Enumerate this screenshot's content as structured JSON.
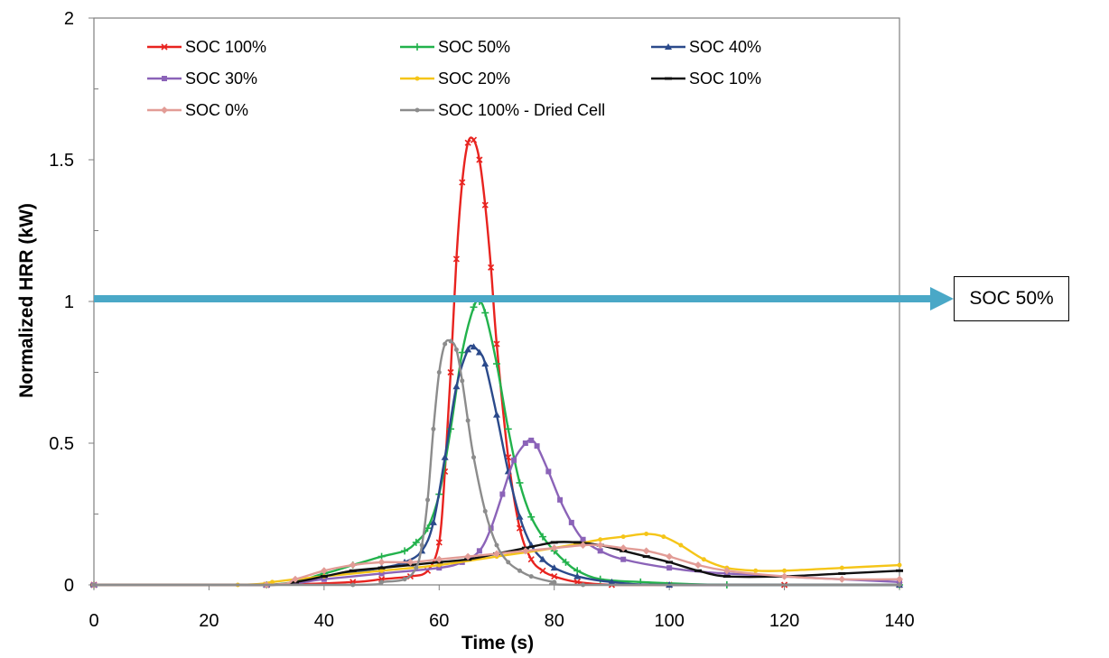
{
  "chart_data": {
    "type": "line",
    "title": "",
    "xlabel": "Time (s)",
    "ylabel": "Normalized HRR (kW)",
    "xlim": [
      0,
      140
    ],
    "ylim": [
      0,
      2
    ],
    "xticks": [
      "0",
      "20",
      "40",
      "60",
      "80",
      "100",
      "120",
      "140"
    ],
    "yticks": [
      "0",
      "0.5",
      "1",
      "1.5",
      "2"
    ],
    "legend_position": "top-left inside plot",
    "grid": false,
    "series": [
      {
        "name": "SOC 100%",
        "color": "#e8231f",
        "marker": "x",
        "x": [
          0,
          30,
          45,
          50,
          55,
          58,
          60,
          61,
          62,
          63,
          64,
          65,
          66,
          67,
          68,
          69,
          70,
          72,
          74,
          76,
          78,
          80,
          84,
          90,
          100,
          120,
          140
        ],
        "y": [
          0,
          0,
          0.01,
          0.02,
          0.03,
          0.05,
          0.15,
          0.4,
          0.75,
          1.15,
          1.42,
          1.56,
          1.57,
          1.5,
          1.34,
          1.12,
          0.85,
          0.45,
          0.2,
          0.09,
          0.05,
          0.03,
          0.01,
          0,
          0,
          0,
          0
        ]
      },
      {
        "name": "SOC 50%",
        "color": "#22b24c",
        "marker": "+",
        "x": [
          0,
          30,
          40,
          45,
          50,
          54,
          56,
          58,
          60,
          62,
          64,
          66,
          67,
          68,
          70,
          72,
          74,
          76,
          78,
          80,
          82,
          84,
          88,
          95,
          110,
          140
        ],
        "y": [
          0,
          0,
          0.04,
          0.07,
          0.1,
          0.12,
          0.15,
          0.2,
          0.32,
          0.55,
          0.82,
          0.98,
          1.0,
          0.96,
          0.78,
          0.55,
          0.36,
          0.24,
          0.17,
          0.12,
          0.08,
          0.05,
          0.02,
          0.01,
          0,
          0
        ]
      },
      {
        "name": "SOC 40%",
        "color": "#2b4a8b",
        "marker": "triangle",
        "x": [
          0,
          30,
          40,
          50,
          54,
          57,
          59,
          61,
          63,
          65,
          66,
          67,
          68,
          70,
          72,
          74,
          76,
          78,
          80,
          84,
          90,
          100,
          140
        ],
        "y": [
          0,
          0,
          0.03,
          0.06,
          0.08,
          0.12,
          0.22,
          0.45,
          0.7,
          0.83,
          0.84,
          0.82,
          0.78,
          0.6,
          0.4,
          0.24,
          0.14,
          0.09,
          0.06,
          0.03,
          0.01,
          0,
          0
        ]
      },
      {
        "name": "SOC 30%",
        "color": "#8b63b8",
        "marker": "square",
        "x": [
          0,
          30,
          40,
          50,
          60,
          64,
          67,
          69,
          71,
          73,
          75,
          76,
          77,
          79,
          81,
          83,
          85,
          88,
          92,
          100,
          110,
          140
        ],
        "y": [
          0,
          0,
          0.02,
          0.04,
          0.06,
          0.08,
          0.12,
          0.2,
          0.32,
          0.44,
          0.5,
          0.51,
          0.49,
          0.4,
          0.3,
          0.22,
          0.16,
          0.12,
          0.09,
          0.06,
          0.04,
          0.01
        ]
      },
      {
        "name": "SOC 20%",
        "color": "#f5c518",
        "marker": "dot",
        "x": [
          0,
          25,
          31,
          35,
          40,
          50,
          60,
          70,
          80,
          88,
          92,
          96,
          99,
          102,
          106,
          110,
          115,
          120,
          130,
          140
        ],
        "y": [
          0,
          0,
          0.01,
          0.02,
          0.03,
          0.05,
          0.07,
          0.1,
          0.13,
          0.16,
          0.17,
          0.18,
          0.17,
          0.14,
          0.09,
          0.06,
          0.05,
          0.05,
          0.06,
          0.07
        ]
      },
      {
        "name": "SOC 10%",
        "color": "#111111",
        "marker": "dash",
        "x": [
          0,
          30,
          35,
          40,
          45,
          50,
          55,
          60,
          65,
          70,
          75,
          80,
          84,
          88,
          92,
          96,
          100,
          105,
          110,
          120,
          130,
          140
        ],
        "y": [
          0,
          0,
          0.01,
          0.03,
          0.05,
          0.06,
          0.07,
          0.08,
          0.09,
          0.11,
          0.13,
          0.15,
          0.15,
          0.14,
          0.12,
          0.1,
          0.08,
          0.05,
          0.03,
          0.03,
          0.04,
          0.05
        ]
      },
      {
        "name": "SOC 0%",
        "color": "#e29c96",
        "marker": "diamond",
        "x": [
          0,
          30,
          35,
          40,
          45,
          50,
          55,
          60,
          65,
          70,
          75,
          80,
          85,
          88,
          92,
          96,
          100,
          105,
          110,
          120,
          130,
          140
        ],
        "y": [
          0,
          0,
          0.02,
          0.05,
          0.07,
          0.08,
          0.08,
          0.09,
          0.1,
          0.11,
          0.12,
          0.13,
          0.14,
          0.14,
          0.13,
          0.12,
          0.1,
          0.07,
          0.05,
          0.03,
          0.02,
          0.02
        ]
      },
      {
        "name": "SOC 100% - Dried Cell",
        "color": "#8c8c8c",
        "marker": "dot",
        "x": [
          0,
          45,
          50,
          54,
          56,
          57,
          58,
          59,
          60,
          61,
          62,
          63,
          64,
          65,
          66,
          68,
          70,
          72,
          74,
          76,
          80,
          85,
          140
        ],
        "y": [
          0,
          0,
          0.01,
          0.02,
          0.06,
          0.14,
          0.3,
          0.55,
          0.75,
          0.85,
          0.86,
          0.83,
          0.72,
          0.58,
          0.45,
          0.26,
          0.14,
          0.08,
          0.05,
          0.03,
          0.01,
          0,
          0
        ]
      }
    ]
  },
  "annotation": {
    "label": "SOC 50%",
    "y": 1,
    "color": "#4aa8c7"
  }
}
